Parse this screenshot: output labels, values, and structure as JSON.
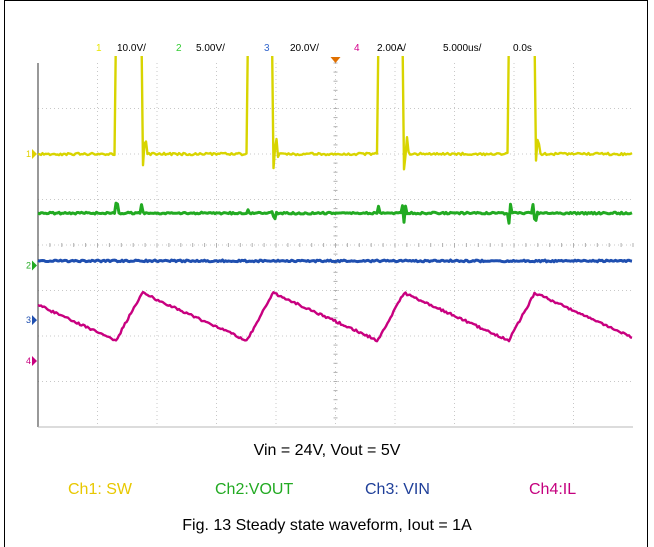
{
  "header": {
    "ch1": {
      "num": "1",
      "scale": "10.0V/",
      "color": "#e8e600"
    },
    "ch2": {
      "num": "2",
      "scale": "5.00V/",
      "color": "#33cc33"
    },
    "ch3": {
      "num": "3",
      "scale": "20.0V/",
      "color": "#3366cc"
    },
    "ch4": {
      "num": "4",
      "scale": "2.00A/",
      "color": "#d4008c"
    },
    "timebase": "5.000us/",
    "delay": "0.0s"
  },
  "captions": {
    "condition": "Vin = 24V, Vout = 5V",
    "figure": "Fig. 13    Steady state waveform, Iout = 1A"
  },
  "legend": [
    {
      "label": "Ch1: SW",
      "color": "#e8c800"
    },
    {
      "label": "Ch2:VOUT",
      "color": "#22aa22"
    },
    {
      "label": "Ch3: VIN",
      "color": "#1f3f99"
    },
    {
      "label": "Ch4:IL",
      "color": "#c4007e"
    }
  ],
  "chart_data": {
    "type": "line",
    "title": "",
    "xlabel": "",
    "ylabel": "",
    "x_divisions": 10,
    "y_divisions": 8,
    "timebase_per_div_us": 5,
    "period_divisions": 2.2,
    "series": [
      {
        "name": "Ch1: SW",
        "color": "#d8d400",
        "kind": "switch",
        "low_div": 2.0,
        "high_div": 4.6,
        "duty": 0.2
      },
      {
        "name": "Ch2:VOUT",
        "color": "#22aa22",
        "kind": "flat",
        "level_div": 0.7
      },
      {
        "name": "Ch3: VIN",
        "color": "#1f4fb0",
        "kind": "flat",
        "level_div": -0.35
      },
      {
        "name": "Ch4:IL",
        "color": "#c8007f",
        "kind": "triangle",
        "min_div": -2.1,
        "max_div": -1.05,
        "rise_fraction": 0.2
      }
    ]
  }
}
